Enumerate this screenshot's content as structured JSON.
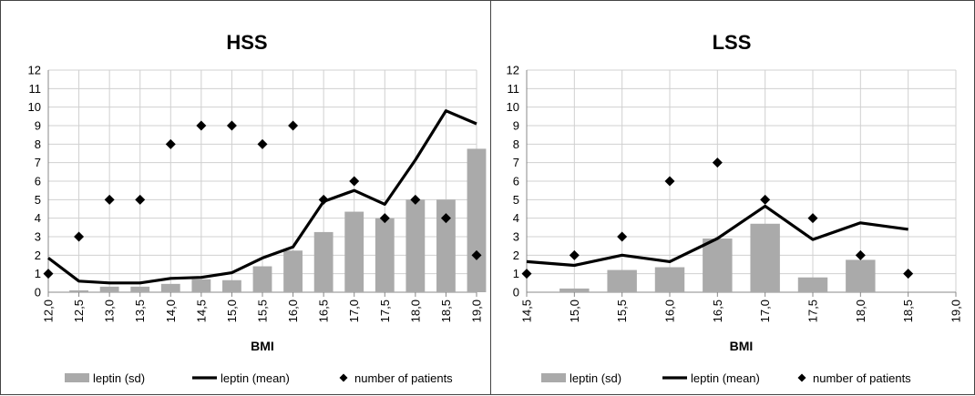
{
  "colors": {
    "bar": "#aaaaaa",
    "line": "#000000",
    "marker": "#000000",
    "grid": "#d0d0d0"
  },
  "chart_data": [
    {
      "type": "bar",
      "title": "HSS",
      "xlabel": "BMI",
      "ylabel": "",
      "ylim": [
        0,
        12
      ],
      "yticks": [
        "0",
        "1",
        "2",
        "3",
        "4",
        "5",
        "6",
        "7",
        "8",
        "9",
        "10",
        "11",
        "12"
      ],
      "categories": [
        "12,0",
        "12,5",
        "13,0",
        "13,5",
        "14,0",
        "14,5",
        "15,0",
        "15,5",
        "16,0",
        "16,5",
        "17,0",
        "17,5",
        "18,0",
        "18,5",
        "19,0"
      ],
      "grid": true,
      "legend_position": "bottom",
      "series": [
        {
          "name": "leptin (sd)",
          "kind": "bar",
          "values": [
            null,
            0.1,
            0.3,
            0.3,
            0.45,
            0.7,
            0.65,
            1.4,
            2.25,
            3.25,
            4.35,
            4.0,
            5.0,
            5.0,
            7.75
          ]
        },
        {
          "name": "leptin (mean)",
          "kind": "line",
          "values": [
            1.85,
            0.6,
            0.5,
            0.5,
            0.75,
            0.8,
            1.05,
            1.85,
            2.45,
            4.9,
            5.5,
            4.75,
            7.15,
            9.8,
            9.1
          ]
        },
        {
          "name": "number of patients",
          "kind": "marker",
          "values": [
            1,
            3,
            5,
            5,
            8,
            9,
            9,
            8,
            9,
            5,
            6,
            4,
            5,
            4,
            2
          ]
        }
      ]
    },
    {
      "type": "bar",
      "title": "LSS",
      "xlabel": "BMI",
      "ylabel": "",
      "ylim": [
        0,
        12
      ],
      "yticks": [
        "0",
        "1",
        "2",
        "3",
        "4",
        "5",
        "6",
        "7",
        "8",
        "9",
        "10",
        "11",
        "12"
      ],
      "categories": [
        "14,5",
        "15,0",
        "15,5",
        "16,0",
        "16,5",
        "17,0",
        "17,5",
        "18,0",
        "18,5",
        "19,0"
      ],
      "grid": true,
      "legend_position": "bottom",
      "series": [
        {
          "name": "leptin (sd)",
          "kind": "bar",
          "values": [
            null,
            0.2,
            1.2,
            1.35,
            2.9,
            3.7,
            0.8,
            1.75,
            null,
            null
          ]
        },
        {
          "name": "leptin (mean)",
          "kind": "line",
          "values": [
            1.65,
            1.45,
            2.0,
            1.65,
            2.9,
            4.65,
            2.85,
            3.75,
            3.4,
            null
          ]
        },
        {
          "name": "number of patients",
          "kind": "marker",
          "values": [
            1,
            2,
            3,
            6,
            7,
            5,
            4,
            2,
            1,
            null
          ]
        }
      ]
    }
  ]
}
